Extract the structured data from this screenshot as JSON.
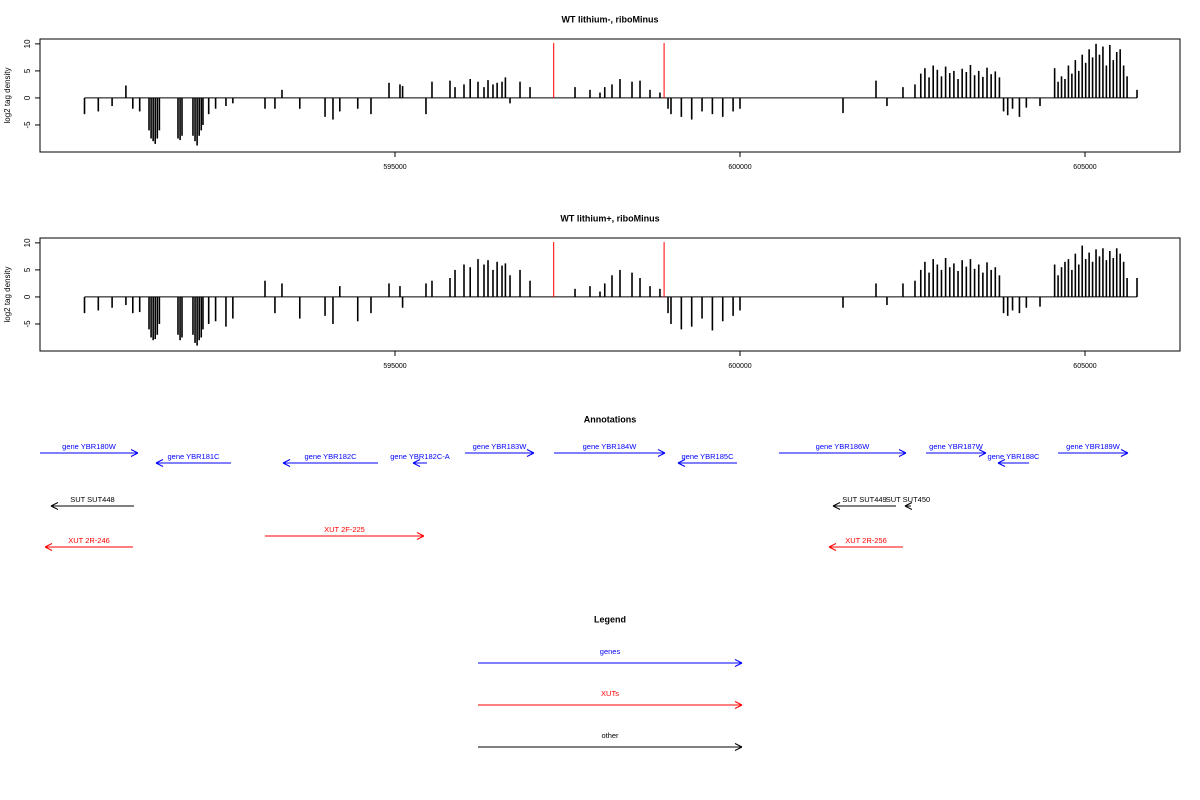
{
  "chart_data": [
    {
      "type": "bar",
      "title": "WT lithium-, riboMinus",
      "y_label": "log2 tag density",
      "xlim": [
        589855,
        606377
      ],
      "xticks": [
        595000,
        600000,
        605000
      ],
      "ylim": [
        -10,
        10.9
      ],
      "yticks": [
        -5,
        0,
        5,
        10
      ],
      "color": "#000000",
      "vlines": [
        597300,
        598900
      ],
      "vline_color": "#ff0000",
      "x": [
        590500,
        590700,
        590900,
        591100,
        591200,
        591300,
        591435,
        591465,
        591495,
        591525,
        591555,
        591585,
        591855,
        591885,
        591913,
        592072,
        592102,
        592132,
        592162,
        592192,
        592217,
        592300,
        592400,
        592550,
        592650,
        593116,
        593260,
        593362,
        593620,
        593986,
        594101,
        594200,
        594460,
        594652,
        594913,
        595072,
        595110,
        595449,
        595536,
        595797,
        595870,
        596000,
        596090,
        596203,
        596290,
        596348,
        596420,
        596480,
        596551,
        596600,
        596667,
        596812,
        596957,
        597609,
        597826,
        597971,
        598040,
        598145,
        598261,
        598435,
        598551,
        598696,
        598840,
        598957,
        599000,
        599150,
        599300,
        599450,
        599600,
        599750,
        599900,
        600000,
        601493,
        601971,
        602130,
        602362,
        602536,
        602620,
        602680,
        602740,
        602800,
        602860,
        602920,
        602980,
        603040,
        603100,
        603160,
        603220,
        603280,
        603340,
        603400,
        603460,
        603520,
        603580,
        603640,
        603700,
        603760,
        603820,
        603880,
        603950,
        604050,
        604150,
        604348,
        604560,
        604610,
        604660,
        604710,
        604760,
        604810,
        604860,
        604910,
        604960,
        605010,
        605060,
        605110,
        605160,
        605210,
        605260,
        605310,
        605360,
        605410,
        605460,
        605510,
        605560,
        605610,
        605754
      ],
      "values": [
        -3,
        -2.5,
        -1.5,
        2.3,
        -2,
        -2.5,
        -6,
        -7.5,
        -8,
        -8.5,
        -7.5,
        -6,
        -7.5,
        -7.8,
        -7,
        -7,
        -8,
        -8.8,
        -7,
        -6,
        -5,
        -3,
        -2,
        -1.5,
        -1,
        -2,
        -2,
        1.5,
        -2,
        -3.5,
        -4,
        -2.5,
        -2,
        -3,
        2.8,
        2.5,
        2.2,
        -3,
        3,
        3.2,
        2,
        2.5,
        3.5,
        3,
        2,
        3.3,
        2.5,
        2.8,
        3,
        3.8,
        -1,
        3,
        2,
        2,
        1.5,
        1,
        2,
        2.5,
        3.5,
        3,
        3.2,
        1.5,
        1,
        -2,
        -3,
        -3.5,
        -4,
        -2.5,
        -3,
        -3.5,
        -2.5,
        -2,
        -2.8,
        3.2,
        -1.5,
        2,
        2.5,
        4.5,
        5.5,
        3.8,
        6,
        5.2,
        4,
        5.8,
        4.6,
        5,
        3.5,
        5.4,
        4.8,
        6.1,
        4.2,
        5,
        3.9,
        5.6,
        4.4,
        4.9,
        3.8,
        -2.5,
        -3.2,
        -2,
        -3.5,
        -1.8,
        -1.5,
        5.5,
        3,
        4,
        3.5,
        6,
        4.5,
        7,
        5,
        8,
        6.5,
        9,
        7.5,
        10,
        8,
        9.5,
        6,
        9.8,
        7,
        8.5,
        9,
        6,
        4,
        1.5
      ]
    },
    {
      "type": "bar",
      "title": "WT lithium+, riboMinus",
      "y_label": "log2 tag density",
      "xlim": [
        589855,
        606377
      ],
      "xticks": [
        595000,
        600000,
        605000
      ],
      "ylim": [
        -10,
        10.9
      ],
      "yticks": [
        -5,
        0,
        5,
        10
      ],
      "color": "#000000",
      "vlines": [
        597300,
        598900
      ],
      "vline_color": "#ff0000",
      "x": [
        590500,
        590700,
        590900,
        591100,
        591200,
        591300,
        591435,
        591465,
        591495,
        591525,
        591555,
        591585,
        591855,
        591885,
        591913,
        592072,
        592102,
        592132,
        592162,
        592192,
        592217,
        592300,
        592400,
        592550,
        592650,
        593116,
        593260,
        593362,
        593620,
        593986,
        594101,
        594200,
        594460,
        594652,
        594913,
        595072,
        595110,
        595449,
        595536,
        595797,
        595870,
        596000,
        596090,
        596203,
        596290,
        596348,
        596420,
        596480,
        596551,
        596600,
        596667,
        596812,
        596957,
        597609,
        597826,
        597971,
        598040,
        598145,
        598261,
        598435,
        598551,
        598696,
        598840,
        598957,
        599000,
        599150,
        599300,
        599450,
        599600,
        599750,
        599900,
        600000,
        601493,
        601971,
        602130,
        602362,
        602536,
        602620,
        602680,
        602740,
        602800,
        602860,
        602920,
        602980,
        603040,
        603100,
        603160,
        603220,
        603280,
        603340,
        603400,
        603460,
        603520,
        603580,
        603640,
        603700,
        603760,
        603820,
        603880,
        603950,
        604050,
        604150,
        604348,
        604560,
        604610,
        604660,
        604710,
        604760,
        604810,
        604860,
        604910,
        604960,
        605010,
        605060,
        605110,
        605160,
        605210,
        605260,
        605310,
        605360,
        605410,
        605460,
        605510,
        605560,
        605610,
        605754
      ],
      "values": [
        -3,
        -2.5,
        -2,
        -1.5,
        -3,
        -2.8,
        -6,
        -7.5,
        -8,
        -7.8,
        -7,
        -5,
        -7,
        -8,
        -7.5,
        -7,
        -8.5,
        -9,
        -8,
        -7.5,
        -6,
        -5,
        -4.5,
        -5.5,
        -4,
        3,
        -3,
        2.5,
        -4,
        -3.5,
        -5,
        2,
        -4.5,
        -3,
        2.5,
        2,
        -2,
        2.5,
        3,
        3.5,
        5,
        6,
        5.5,
        7,
        6,
        6.8,
        5,
        6.5,
        5.8,
        6.2,
        4,
        5,
        3,
        1.5,
        2,
        1,
        2.5,
        4,
        5,
        4.5,
        3.5,
        2,
        1.5,
        -3,
        -5,
        -6,
        -5.5,
        -4,
        -6.2,
        -4.5,
        -3.5,
        -2.5,
        -2,
        2.5,
        -1.5,
        2.5,
        3,
        5,
        6.5,
        4.5,
        7,
        6,
        5,
        7.2,
        5.5,
        6.2,
        4.8,
        6.8,
        5.6,
        7,
        5.2,
        6,
        4.5,
        6.4,
        5,
        5.5,
        4,
        -3,
        -3.5,
        -2.5,
        -3,
        -2,
        -1.8,
        6,
        4,
        5.5,
        6.5,
        7,
        5,
        8,
        6,
        9.5,
        7,
        8.2,
        6.5,
        8.8,
        7.5,
        9,
        6.8,
        8.5,
        7.2,
        9,
        8,
        6.5,
        3.5,
        3.5
      ]
    }
  ],
  "annotations": {
    "title": "Annotations",
    "tracks": [
      {
        "color": "#0000ff",
        "features": [
          {
            "label": "gene YBR180W",
            "start": 589855,
            "end": 591275,
            "strand": "+"
          },
          {
            "label": "gene YBR181C",
            "start": 591536,
            "end": 592623,
            "strand": "-"
          },
          {
            "label": "gene YBR182C",
            "start": 593377,
            "end": 594754,
            "strand": "-"
          },
          {
            "label": "gene YBR182C-A",
            "start": 595261,
            "end": 595464,
            "strand": "-"
          },
          {
            "label": "gene YBR183W",
            "start": 596014,
            "end": 597014,
            "strand": "+"
          },
          {
            "label": "gene YBR184W",
            "start": 597304,
            "end": 598913,
            "strand": "+"
          },
          {
            "label": "gene YBR185C",
            "start": 599101,
            "end": 599957,
            "strand": "-"
          },
          {
            "label": "gene YBR186W",
            "start": 600565,
            "end": 602406,
            "strand": "+"
          },
          {
            "label": "gene YBR187W",
            "start": 602696,
            "end": 603565,
            "strand": "+"
          },
          {
            "label": "gene YBR188C",
            "start": 603739,
            "end": 604188,
            "strand": "-"
          },
          {
            "label": "gene YBR189W",
            "start": 604609,
            "end": 605623,
            "strand": "+"
          }
        ]
      },
      {
        "color": "#000000",
        "features": [
          {
            "label": "SUT SUT448",
            "start": 590014,
            "end": 591217,
            "strand": "-"
          },
          {
            "label": "SUT SUT449",
            "start": 601348,
            "end": 602261,
            "strand": "-"
          },
          {
            "label": "SUT SUT450",
            "start": 602391,
            "end": 602478,
            "strand": "-"
          }
        ]
      },
      {
        "color": "#ff0000",
        "features": [
          {
            "label": "XUT 2R-246",
            "start": 589928,
            "end": 591203,
            "strand": "-"
          },
          {
            "label": "XUT 2F-225",
            "start": 593116,
            "end": 595420,
            "strand": "+"
          },
          {
            "label": "XUT 2R-256",
            "start": 601290,
            "end": 602362,
            "strand": "-"
          }
        ]
      }
    ]
  },
  "legend": {
    "title": "Legend",
    "entries": [
      {
        "label": "genes",
        "color": "#0000ff"
      },
      {
        "label": "XUTs",
        "color": "#ff0000"
      },
      {
        "label": "other",
        "color": "#000000"
      }
    ]
  }
}
